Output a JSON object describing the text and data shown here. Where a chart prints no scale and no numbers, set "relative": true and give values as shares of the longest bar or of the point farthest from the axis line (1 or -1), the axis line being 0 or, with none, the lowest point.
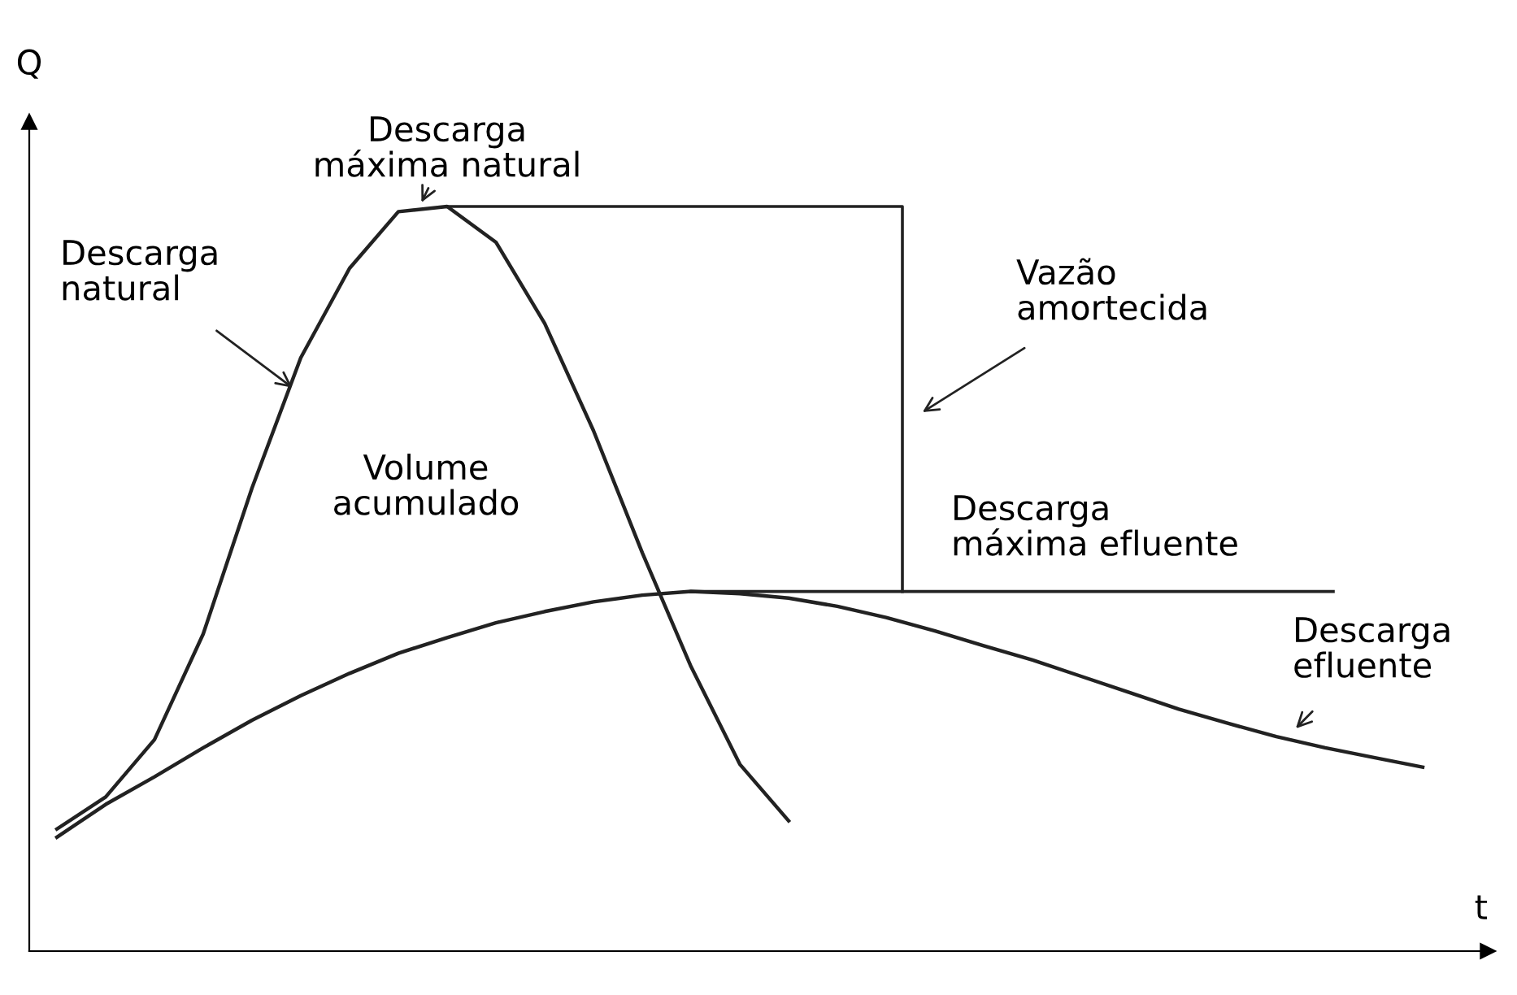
{
  "chart_data": {
    "type": "line",
    "relative": true,
    "xlabel": "t",
    "ylabel": "Q",
    "marker": "none",
    "line_style": "solid",
    "categories": [
      null,
      null,
      null,
      null,
      null,
      null,
      null,
      null,
      null,
      null,
      null,
      null,
      null,
      null,
      null,
      null,
      null,
      null,
      null,
      null,
      null,
      null,
      null,
      null,
      null,
      null,
      null,
      null,
      null
    ],
    "series": [
      {
        "color": "#222222",
        "values": [
          0.164,
          0.207,
          0.284,
          0.426,
          0.622,
          0.797,
          0.917,
          0.993,
          1.0,
          0.952,
          0.843,
          0.699,
          0.535,
          0.382,
          0.251,
          0.175,
          null,
          null,
          null,
          null,
          null,
          null,
          null,
          null,
          null,
          null,
          null,
          null,
          null
        ]
      },
      {
        "color": "#222222",
        "values": [
          0.153,
          0.197,
          0.234,
          0.273,
          0.31,
          0.343,
          0.373,
          0.4,
          0.421,
          0.441,
          0.456,
          0.469,
          0.478,
          0.483,
          0.48,
          0.474,
          0.463,
          0.448,
          0.43,
          0.41,
          0.391,
          0.369,
          0.347,
          0.325,
          0.306,
          0.288,
          0.273,
          0.26,
          0.247
        ]
      }
    ],
    "annotations": [
      "Descarga\nmáxima natural",
      "Descarga\nnatural",
      "Vazão\namortecida",
      "Volume\nacumulado",
      "Descarga\nmáxima efluente",
      "Descarga\nefluente"
    ]
  }
}
